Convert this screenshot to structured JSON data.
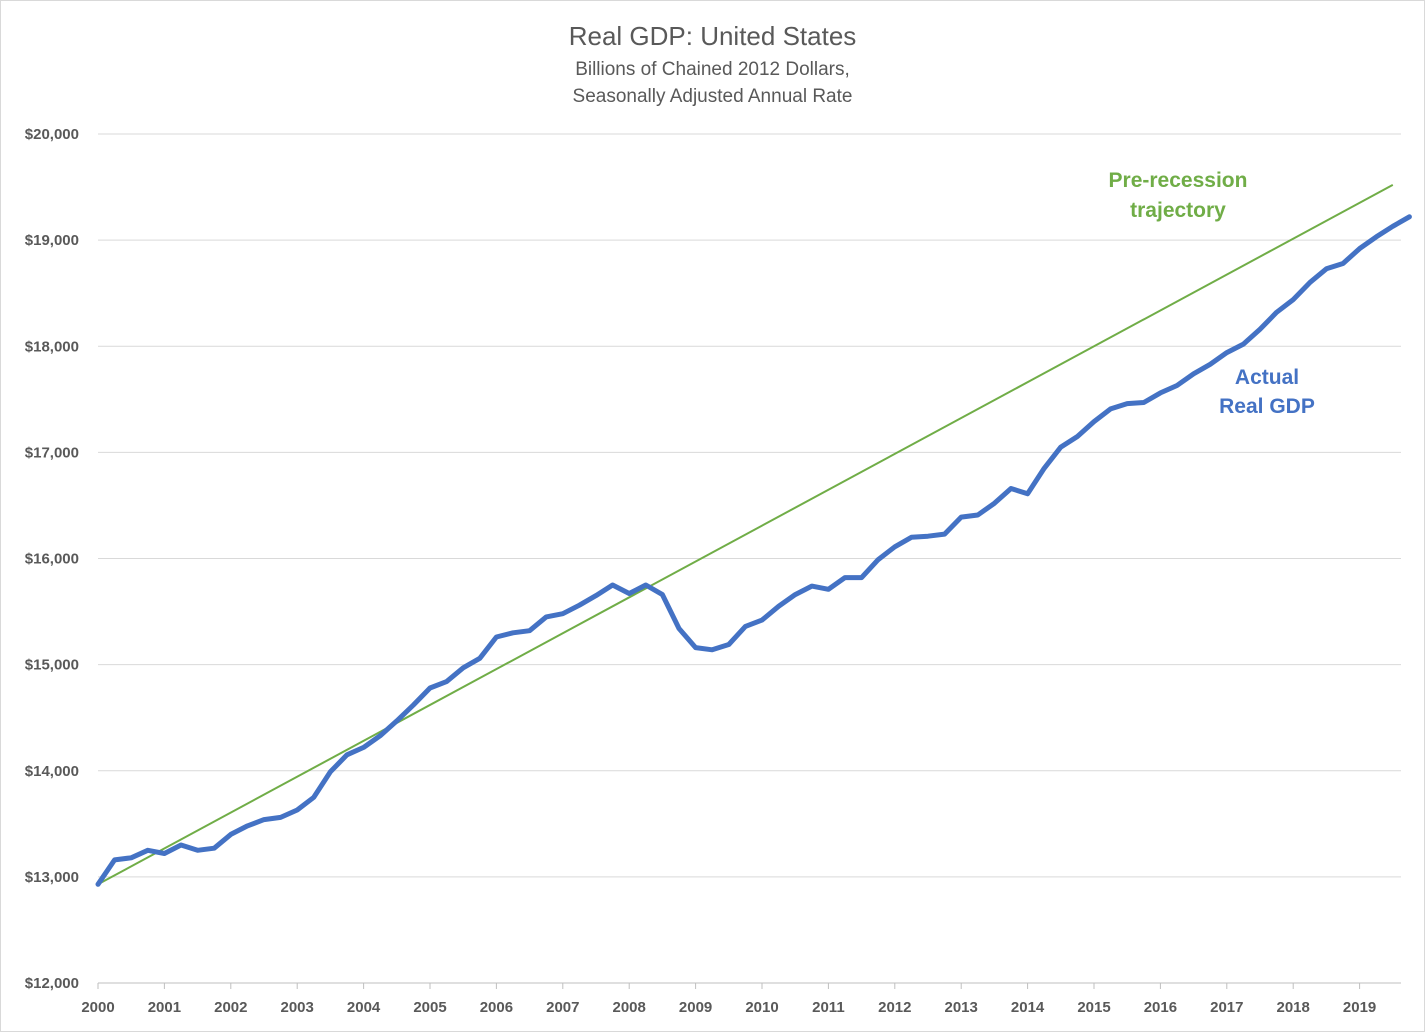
{
  "chart_data": {
    "type": "line",
    "title": "Real GDP: United States",
    "subtitle_lines": [
      "Billions of Chained 2012 Dollars,",
      "Seasonally Adjusted Annual Rate"
    ],
    "ylim": [
      12000,
      20000
    ],
    "xlim": [
      2000.0,
      2019.85
    ],
    "y_ticks": [
      12000,
      13000,
      14000,
      15000,
      16000,
      17000,
      18000,
      19000,
      20000
    ],
    "y_tick_labels": [
      "$12,000",
      "$13,000",
      "$14,000",
      "$15,000",
      "$16,000",
      "$17,000",
      "$18,000",
      "$19,000",
      "$20,000"
    ],
    "x_ticks": [
      2000,
      2001,
      2002,
      2003,
      2004,
      2005,
      2006,
      2007,
      2008,
      2009,
      2010,
      2011,
      2012,
      2013,
      2014,
      2015,
      2016,
      2017,
      2018,
      2019
    ],
    "x_tick_labels": [
      "2000",
      "2001",
      "2002",
      "2003",
      "2004",
      "2005",
      "2006",
      "2007",
      "2008",
      "2009",
      "2010",
      "2011",
      "2012",
      "2013",
      "2014",
      "2015",
      "2016",
      "2017",
      "2018",
      "2019"
    ],
    "grid": "horizontal",
    "series": [
      {
        "name": "Actual Real GDP",
        "label_lines": [
          "Actual",
          "Real GDP"
        ],
        "color": "#4472c4",
        "x": [
          2000.0,
          2000.25,
          2000.5,
          2000.75,
          2001.0,
          2001.25,
          2001.5,
          2001.75,
          2002.0,
          2002.25,
          2002.5,
          2002.75,
          2003.0,
          2003.25,
          2003.5,
          2003.75,
          2004.0,
          2004.25,
          2004.5,
          2004.75,
          2005.0,
          2005.25,
          2005.5,
          2005.75,
          2006.0,
          2006.25,
          2006.5,
          2006.75,
          2007.0,
          2007.25,
          2007.5,
          2007.75,
          2008.0,
          2008.25,
          2008.5,
          2008.75,
          2009.0,
          2009.25,
          2009.5,
          2009.75,
          2010.0,
          2010.25,
          2010.5,
          2010.75,
          2011.0,
          2011.25,
          2011.5,
          2011.75,
          2012.0,
          2012.25,
          2012.5,
          2012.75,
          2013.0,
          2013.25,
          2013.5,
          2013.75,
          2014.0,
          2014.25,
          2014.5,
          2014.75,
          2015.0,
          2015.25,
          2015.5,
          2015.75,
          2016.0,
          2016.25,
          2016.5,
          2016.75,
          2017.0,
          2017.25,
          2017.5,
          2017.75,
          2018.0,
          2018.25,
          2018.5,
          2018.75,
          2019.0,
          2019.25,
          2019.5,
          2019.75
        ],
        "y": [
          12930,
          13160,
          13180,
          13250,
          13220,
          13300,
          13250,
          13270,
          13400,
          13480,
          13540,
          13560,
          13630,
          13750,
          13990,
          14150,
          14220,
          14330,
          14470,
          14620,
          14780,
          14840,
          14970,
          15060,
          15260,
          15300,
          15320,
          15450,
          15480,
          15560,
          15650,
          15750,
          15670,
          15750,
          15660,
          15340,
          15160,
          15140,
          15190,
          15360,
          15420,
          15550,
          15660,
          15740,
          15710,
          15820,
          15820,
          15990,
          16110,
          16200,
          16210,
          16230,
          16390,
          16410,
          16520,
          16660,
          16610,
          16850,
          17050,
          17150,
          17290,
          17410,
          17460,
          17470,
          17560,
          17630,
          17740,
          17830,
          17940,
          18020,
          18160,
          18320,
          18440,
          18600,
          18730,
          18780,
          18920,
          19030,
          19130,
          19220
        ]
      },
      {
        "name": "Pre-recession trajectory",
        "label_lines": [
          "Pre-recession",
          "trajectory"
        ],
        "color": "#70ad47",
        "x": [
          2000.0,
          2019.5
        ],
        "y": [
          12930,
          19520
        ]
      }
    ]
  }
}
